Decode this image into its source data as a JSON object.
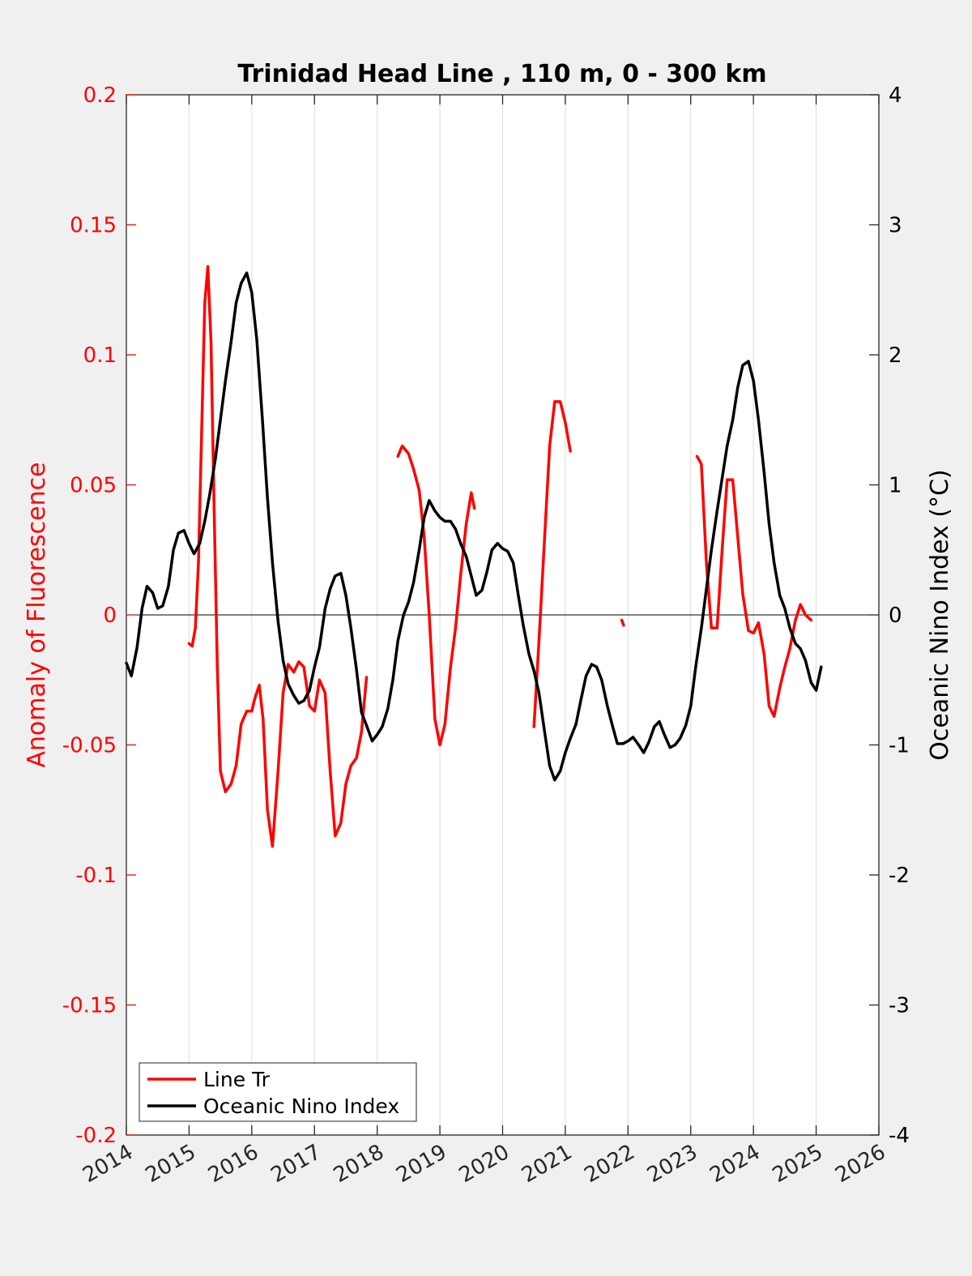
{
  "colors": {
    "fluorescence": "#ff0000",
    "oni": "#000000",
    "background": "#f0f0f0",
    "plot_bg": "#ffffff",
    "grid": "#dcdcdc"
  },
  "chart_data": {
    "type": "line",
    "title": "Trinidad Head Line , 110 m, 0 - 300 km",
    "ylabel_left": "Anomaly of Fluorescence",
    "ylabel_right": "Oceanic Nino Index (°C)",
    "xlabel": "",
    "xlim": [
      2014,
      2026
    ],
    "ylim_left": [
      -0.2,
      0.2
    ],
    "ylim_right": [
      -4,
      4
    ],
    "grid": "vertical",
    "legend_position": "bottom-left",
    "x_ticks": [
      "2014",
      "2015",
      "2016",
      "2017",
      "2018",
      "2019",
      "2020",
      "2021",
      "2022",
      "2023",
      "2024",
      "2025",
      "2026"
    ],
    "y_ticks_left": [
      "-0.2",
      "-0.15",
      "-0.1",
      "-0.05",
      "0",
      "0.05",
      "0.1",
      "0.15",
      "0.2"
    ],
    "y_ticks_right": [
      "-4",
      "-3",
      "-2",
      "-1",
      "0",
      "1",
      "2",
      "3",
      "4"
    ],
    "series": [
      {
        "name": "Line Tr",
        "axis": "left",
        "segments": [
          [
            [
              2015.0,
              -0.011
            ],
            [
              2015.05,
              -0.012
            ],
            [
              2015.1,
              -0.005
            ],
            [
              2015.15,
              0.02
            ],
            [
              2015.2,
              0.07
            ],
            [
              2015.25,
              0.12
            ],
            [
              2015.3,
              0.134
            ],
            [
              2015.35,
              0.105
            ],
            [
              2015.4,
              0.04
            ],
            [
              2015.45,
              -0.02
            ],
            [
              2015.5,
              -0.06
            ],
            [
              2015.58,
              -0.068
            ],
            [
              2015.67,
              -0.065
            ],
            [
              2015.75,
              -0.058
            ],
            [
              2015.83,
              -0.042
            ],
            [
              2015.92,
              -0.037
            ],
            [
              2016.0,
              -0.037
            ],
            [
              2016.05,
              -0.032
            ],
            [
              2016.12,
              -0.027
            ],
            [
              2016.18,
              -0.04
            ],
            [
              2016.25,
              -0.075
            ],
            [
              2016.33,
              -0.089
            ],
            [
              2016.42,
              -0.06
            ],
            [
              2016.5,
              -0.03
            ],
            [
              2016.58,
              -0.019
            ],
            [
              2016.67,
              -0.022
            ],
            [
              2016.75,
              -0.018
            ],
            [
              2016.83,
              -0.02
            ],
            [
              2016.92,
              -0.035
            ],
            [
              2017.0,
              -0.037
            ],
            [
              2017.08,
              -0.025
            ],
            [
              2017.17,
              -0.03
            ],
            [
              2017.25,
              -0.06
            ],
            [
              2017.33,
              -0.085
            ],
            [
              2017.42,
              -0.08
            ],
            [
              2017.5,
              -0.065
            ],
            [
              2017.58,
              -0.058
            ],
            [
              2017.67,
              -0.055
            ],
            [
              2017.75,
              -0.045
            ],
            [
              2017.83,
              -0.024
            ]
          ],
          [
            [
              2018.33,
              0.061
            ],
            [
              2018.4,
              0.065
            ],
            [
              2018.5,
              0.062
            ],
            [
              2018.58,
              0.056
            ],
            [
              2018.67,
              0.048
            ],
            [
              2018.75,
              0.03
            ],
            [
              2018.83,
              0.0
            ],
            [
              2018.92,
              -0.04
            ],
            [
              2019.0,
              -0.05
            ],
            [
              2019.08,
              -0.042
            ],
            [
              2019.17,
              -0.02
            ],
            [
              2019.25,
              -0.005
            ],
            [
              2019.33,
              0.015
            ],
            [
              2019.42,
              0.035
            ],
            [
              2019.5,
              0.047
            ],
            [
              2019.55,
              0.041
            ]
          ],
          [
            [
              2020.5,
              -0.043
            ],
            [
              2020.58,
              -0.01
            ],
            [
              2020.67,
              0.03
            ],
            [
              2020.75,
              0.065
            ],
            [
              2020.83,
              0.082
            ],
            [
              2020.92,
              0.082
            ],
            [
              2021.0,
              0.074
            ],
            [
              2021.08,
              0.063
            ]
          ],
          [
            [
              2021.9,
              -0.002
            ],
            [
              2021.93,
              -0.004
            ]
          ],
          [
            [
              2023.1,
              0.061
            ],
            [
              2023.17,
              0.058
            ],
            [
              2023.25,
              0.02
            ],
            [
              2023.33,
              -0.005
            ],
            [
              2023.42,
              -0.005
            ],
            [
              2023.5,
              0.025
            ],
            [
              2023.58,
              0.052
            ],
            [
              2023.67,
              0.052
            ],
            [
              2023.75,
              0.03
            ],
            [
              2023.83,
              0.008
            ],
            [
              2023.92,
              -0.006
            ],
            [
              2024.0,
              -0.007
            ],
            [
              2024.08,
              -0.003
            ],
            [
              2024.17,
              -0.015
            ],
            [
              2024.25,
              -0.035
            ],
            [
              2024.33,
              -0.039
            ],
            [
              2024.42,
              -0.028
            ],
            [
              2024.5,
              -0.02
            ],
            [
              2024.58,
              -0.013
            ],
            [
              2024.67,
              -0.002
            ],
            [
              2024.75,
              0.004
            ],
            [
              2024.83,
              0.0
            ],
            [
              2024.92,
              -0.002
            ]
          ]
        ]
      },
      {
        "name": "Oceanic Nino Index",
        "axis": "right",
        "segments": [
          [
            [
              2014.0,
              -0.37
            ],
            [
              2014.08,
              -0.47
            ],
            [
              2014.17,
              -0.25
            ],
            [
              2014.25,
              0.05
            ],
            [
              2014.33,
              0.22
            ],
            [
              2014.42,
              0.17
            ],
            [
              2014.5,
              0.05
            ],
            [
              2014.58,
              0.07
            ],
            [
              2014.67,
              0.22
            ],
            [
              2014.75,
              0.5
            ],
            [
              2014.83,
              0.63
            ],
            [
              2014.92,
              0.65
            ],
            [
              2015.0,
              0.55
            ],
            [
              2015.08,
              0.47
            ],
            [
              2015.17,
              0.55
            ],
            [
              2015.25,
              0.72
            ],
            [
              2015.33,
              0.93
            ],
            [
              2015.42,
              1.2
            ],
            [
              2015.5,
              1.5
            ],
            [
              2015.58,
              1.8
            ],
            [
              2015.67,
              2.1
            ],
            [
              2015.75,
              2.4
            ],
            [
              2015.83,
              2.55
            ],
            [
              2015.92,
              2.63
            ],
            [
              2016.0,
              2.48
            ],
            [
              2016.08,
              2.12
            ],
            [
              2016.17,
              1.5
            ],
            [
              2016.25,
              0.9
            ],
            [
              2016.33,
              0.4
            ],
            [
              2016.42,
              -0.05
            ],
            [
              2016.5,
              -0.35
            ],
            [
              2016.58,
              -0.53
            ],
            [
              2016.67,
              -0.62
            ],
            [
              2016.75,
              -0.68
            ],
            [
              2016.83,
              -0.66
            ],
            [
              2016.92,
              -0.58
            ],
            [
              2017.0,
              -0.4
            ],
            [
              2017.08,
              -0.25
            ],
            [
              2017.17,
              0.05
            ],
            [
              2017.25,
              0.2
            ],
            [
              2017.33,
              0.3
            ],
            [
              2017.42,
              0.32
            ],
            [
              2017.5,
              0.15
            ],
            [
              2017.58,
              -0.1
            ],
            [
              2017.67,
              -0.42
            ],
            [
              2017.75,
              -0.75
            ],
            [
              2017.83,
              -0.85
            ],
            [
              2017.92,
              -0.97
            ],
            [
              2018.0,
              -0.92
            ],
            [
              2018.08,
              -0.86
            ],
            [
              2018.17,
              -0.72
            ],
            [
              2018.25,
              -0.5
            ],
            [
              2018.33,
              -0.2
            ],
            [
              2018.42,
              0.0
            ],
            [
              2018.5,
              0.1
            ],
            [
              2018.58,
              0.25
            ],
            [
              2018.67,
              0.5
            ],
            [
              2018.75,
              0.75
            ],
            [
              2018.83,
              0.88
            ],
            [
              2018.92,
              0.8
            ],
            [
              2019.0,
              0.75
            ],
            [
              2019.08,
              0.72
            ],
            [
              2019.17,
              0.72
            ],
            [
              2019.25,
              0.66
            ],
            [
              2019.33,
              0.55
            ],
            [
              2019.42,
              0.45
            ],
            [
              2019.5,
              0.3
            ],
            [
              2019.58,
              0.15
            ],
            [
              2019.67,
              0.19
            ],
            [
              2019.75,
              0.33
            ],
            [
              2019.83,
              0.5
            ],
            [
              2019.92,
              0.55
            ],
            [
              2020.0,
              0.51
            ],
            [
              2020.08,
              0.49
            ],
            [
              2020.17,
              0.4
            ],
            [
              2020.25,
              0.15
            ],
            [
              2020.33,
              -0.08
            ],
            [
              2020.42,
              -0.3
            ],
            [
              2020.5,
              -0.43
            ],
            [
              2020.58,
              -0.6
            ],
            [
              2020.67,
              -0.9
            ],
            [
              2020.75,
              -1.16
            ],
            [
              2020.83,
              -1.27
            ],
            [
              2020.92,
              -1.2
            ],
            [
              2021.0,
              -1.06
            ],
            [
              2021.08,
              -0.95
            ],
            [
              2021.17,
              -0.84
            ],
            [
              2021.25,
              -0.65
            ],
            [
              2021.33,
              -0.47
            ],
            [
              2021.42,
              -0.38
            ],
            [
              2021.5,
              -0.4
            ],
            [
              2021.58,
              -0.5
            ],
            [
              2021.67,
              -0.7
            ],
            [
              2021.75,
              -0.85
            ],
            [
              2021.83,
              -0.99
            ],
            [
              2021.92,
              -0.99
            ],
            [
              2022.0,
              -0.97
            ],
            [
              2022.08,
              -0.94
            ],
            [
              2022.17,
              -1.0
            ],
            [
              2022.25,
              -1.06
            ],
            [
              2022.33,
              -0.98
            ],
            [
              2022.42,
              -0.86
            ],
            [
              2022.5,
              -0.82
            ],
            [
              2022.58,
              -0.92
            ],
            [
              2022.67,
              -1.02
            ],
            [
              2022.75,
              -1.0
            ],
            [
              2022.83,
              -0.95
            ],
            [
              2022.92,
              -0.85
            ],
            [
              2023.0,
              -0.7
            ],
            [
              2023.08,
              -0.4
            ],
            [
              2023.17,
              -0.1
            ],
            [
              2023.25,
              0.2
            ],
            [
              2023.33,
              0.5
            ],
            [
              2023.42,
              0.8
            ],
            [
              2023.5,
              1.05
            ],
            [
              2023.58,
              1.3
            ],
            [
              2023.67,
              1.5
            ],
            [
              2023.75,
              1.75
            ],
            [
              2023.83,
              1.92
            ],
            [
              2023.92,
              1.95
            ],
            [
              2024.0,
              1.8
            ],
            [
              2024.08,
              1.5
            ],
            [
              2024.17,
              1.1
            ],
            [
              2024.25,
              0.7
            ],
            [
              2024.33,
              0.4
            ],
            [
              2024.42,
              0.15
            ],
            [
              2024.5,
              0.05
            ],
            [
              2024.58,
              -0.1
            ],
            [
              2024.67,
              -0.22
            ],
            [
              2024.75,
              -0.26
            ],
            [
              2024.83,
              -0.35
            ],
            [
              2024.92,
              -0.52
            ],
            [
              2025.0,
              -0.58
            ],
            [
              2025.08,
              -0.4
            ]
          ]
        ]
      }
    ]
  }
}
